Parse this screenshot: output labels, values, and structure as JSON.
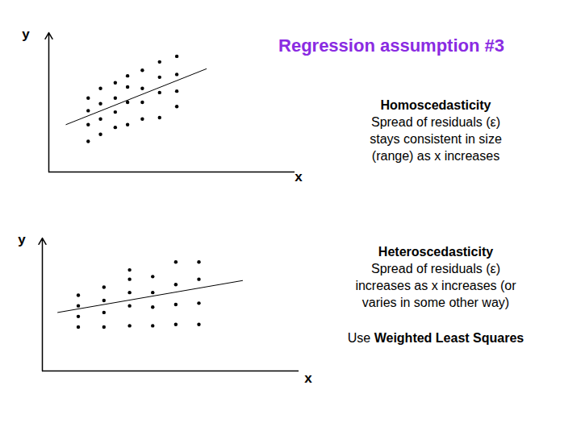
{
  "title": "Regression assumption #3",
  "chart_data": [
    {
      "type": "scatter",
      "x_label": "x",
      "y_label": "y",
      "color": "#000000",
      "marker": "circle",
      "tick_labels": false,
      "xlim": [
        0,
        100
      ],
      "ylim": [
        0,
        100
      ],
      "xticks": [],
      "yticks": [],
      "x": [
        16,
        16,
        16,
        16,
        21,
        21,
        21,
        21,
        27,
        27,
        27,
        27,
        32,
        32,
        32,
        32,
        38,
        38,
        38,
        38,
        45,
        45,
        45,
        45,
        52,
        52,
        52,
        52
      ],
      "values": [
        53,
        44,
        34,
        22,
        60,
        49,
        38,
        27,
        64,
        53,
        43,
        32,
        69,
        61,
        50,
        34,
        73,
        60,
        50,
        38,
        79,
        68,
        57,
        39,
        83,
        70,
        58,
        47
      ],
      "fit_line": {
        "x": [
          7,
          64
        ],
        "y": [
          34,
          74
        ]
      },
      "annotation": {
        "heading": "Homoscedasticity",
        "lines": [
          "Spread of residuals (ε)",
          "stays consistent in size",
          "(range) as x increases"
        ]
      }
    },
    {
      "type": "scatter",
      "x_label": "x",
      "y_label": "y",
      "color": "#000000",
      "marker": "circle",
      "tick_labels": false,
      "xlim": [
        0,
        100
      ],
      "ylim": [
        0,
        100
      ],
      "xticks": [],
      "yticks": [],
      "x": [
        14,
        14,
        14,
        14,
        24,
        24,
        24,
        24,
        34,
        34,
        34,
        34,
        34,
        43,
        43,
        43,
        43,
        52,
        52,
        52,
        52,
        61,
        61,
        61,
        61
      ],
      "values": [
        57,
        49,
        41,
        33,
        63,
        53,
        44,
        33,
        76,
        69,
        59,
        49,
        34,
        71,
        59,
        48,
        34,
        82,
        65,
        50,
        35,
        82,
        69,
        51,
        35
      ],
      "fit_line": {
        "x": [
          6,
          78
        ],
        "y": [
          44,
          68
        ]
      },
      "annotation": {
        "heading": "Heteroscedasticity",
        "lines": [
          "Spread of residuals (ε)",
          "increases as x increases (or",
          "varies in some other way)"
        ]
      },
      "note": {
        "plain": "Use",
        "bold": "Weighted Least Squares"
      }
    }
  ]
}
